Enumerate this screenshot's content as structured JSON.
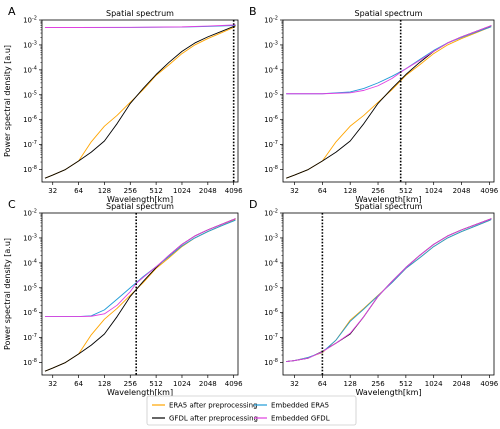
{
  "chart_data": [
    {
      "panel": "A",
      "type": "line",
      "title": "Spatial spectrum",
      "xlabel": "Wavelength[km]",
      "ylabel": "Power spectral density [a.u]",
      "x_scale": "log2",
      "y_scale": "log10",
      "xticks": [
        32,
        64,
        128,
        256,
        512,
        1024,
        2048,
        4096
      ],
      "yticks": [
        "10^-8",
        "10^-7",
        "10^-6",
        "10^-5",
        "10^-4",
        "10^-3",
        "10^-2"
      ],
      "cutoff_wavelength": 4096,
      "series": [
        {
          "name": "ERA5 after preprocessing",
          "color": "#ffa500",
          "x": [
            26,
            32,
            45,
            64,
            90,
            128,
            180,
            256,
            362,
            512,
            724,
            1024,
            1448,
            2048,
            2896,
            4096,
            4300
          ],
          "y": [
            4.5e-09,
            6e-09,
            1e-08,
            2.2e-08,
            1.3e-07,
            5.5e-07,
            1.5e-06,
            5e-06,
            1.6e-05,
            6e-05,
            0.00016,
            0.00045,
            0.001,
            0.0018,
            0.003,
            0.005,
            0.0055
          ]
        },
        {
          "name": "GFDL after preprocessing",
          "color": "#000000",
          "x": [
            26,
            32,
            45,
            64,
            90,
            128,
            180,
            256,
            362,
            512,
            724,
            1024,
            1448,
            2048,
            2896,
            4096,
            4300
          ],
          "y": [
            4.5e-09,
            6e-09,
            1e-08,
            2.2e-08,
            5e-08,
            1.4e-07,
            7e-07,
            4.5e-06,
            1.8e-05,
            6.5e-05,
            0.0002,
            0.00055,
            0.0012,
            0.0021,
            0.0034,
            0.0055,
            0.006
          ]
        },
        {
          "name": "Embedded ERA5",
          "color": "#1f9bd7",
          "x": [
            26,
            64,
            256,
            1024,
            2048,
            4096,
            4300
          ],
          "y": [
            0.005,
            0.005,
            0.00505,
            0.0052,
            0.0055,
            0.006,
            0.0062
          ]
        },
        {
          "name": "Embedded GFDL",
          "color": "#e040e0",
          "x": [
            26,
            64,
            256,
            1024,
            2048,
            4096,
            4300
          ],
          "y": [
            0.005,
            0.005,
            0.0051,
            0.0053,
            0.0057,
            0.0063,
            0.0065
          ]
        }
      ]
    },
    {
      "panel": "B",
      "type": "line",
      "title": "Spatial spectrum",
      "xlabel": "Wavelength[km]",
      "ylabel": "",
      "x_scale": "log2",
      "y_scale": "log10",
      "xticks": [
        32,
        64,
        128,
        256,
        512,
        1024,
        2048,
        4096
      ],
      "yticks": [
        "10^-8",
        "10^-7",
        "10^-6",
        "10^-5",
        "10^-4",
        "10^-3",
        "10^-2"
      ],
      "cutoff_wavelength": 450,
      "series": [
        {
          "name": "ERA5 after preprocessing",
          "color": "#ffa500",
          "x": [
            26,
            32,
            45,
            64,
            90,
            128,
            180,
            256,
            362,
            512,
            724,
            1024,
            1448,
            2048,
            2896,
            4096,
            4300
          ],
          "y": [
            4.5e-09,
            6e-09,
            1e-08,
            2.2e-08,
            1.3e-07,
            5.5e-07,
            1.5e-06,
            5e-06,
            1.6e-05,
            6e-05,
            0.00016,
            0.00045,
            0.001,
            0.0018,
            0.003,
            0.005,
            0.0055
          ]
        },
        {
          "name": "GFDL after preprocessing",
          "color": "#000000",
          "x": [
            26,
            32,
            45,
            64,
            90,
            128,
            180,
            256,
            362,
            512,
            724,
            1024,
            1448,
            2048,
            2896,
            4096,
            4300
          ],
          "y": [
            4.5e-09,
            6e-09,
            1e-08,
            2.2e-08,
            5e-08,
            1.4e-07,
            7e-07,
            4.5e-06,
            1.8e-05,
            6.5e-05,
            0.0002,
            0.00055,
            0.0012,
            0.0021,
            0.0034,
            0.0055,
            0.006
          ]
        },
        {
          "name": "Embedded ERA5",
          "color": "#1f9bd7",
          "x": [
            26,
            64,
            128,
            180,
            256,
            362,
            450,
            512,
            724,
            1024,
            1448,
            2048,
            2896,
            4096,
            4300
          ],
          "y": [
            1.1e-05,
            1.1e-05,
            1.3e-05,
            1.8e-05,
            3e-05,
            5.5e-05,
            8.5e-05,
            0.00011,
            0.00026,
            0.0006,
            0.0012,
            0.002,
            0.0032,
            0.005,
            0.0054
          ]
        },
        {
          "name": "Embedded GFDL",
          "color": "#e040e0",
          "x": [
            26,
            64,
            128,
            180,
            256,
            362,
            450,
            512,
            724,
            1024,
            1448,
            2048,
            2896,
            4096,
            4300
          ],
          "y": [
            1.1e-05,
            1.1e-05,
            1.2e-05,
            1.5e-05,
            2.3e-05,
            4.5e-05,
            8e-05,
            0.00011,
            0.00024,
            0.00055,
            0.0012,
            0.0021,
            0.0034,
            0.0056,
            0.006
          ]
        }
      ]
    },
    {
      "panel": "C",
      "type": "line",
      "title": "Spatial spectrum",
      "xlabel": "Wavelength[km]",
      "ylabel": "Power spectral density [a.u]",
      "x_scale": "log2",
      "y_scale": "log10",
      "xticks": [
        32,
        64,
        128,
        256,
        512,
        1024,
        2048,
        4096
      ],
      "yticks": [
        "10^-8",
        "10^-7",
        "10^-6",
        "10^-5",
        "10^-4",
        "10^-3",
        "10^-2"
      ],
      "cutoff_wavelength": 300,
      "series": [
        {
          "name": "ERA5 after preprocessing",
          "color": "#ffa500",
          "x": [
            26,
            32,
            45,
            64,
            90,
            128,
            180,
            256,
            362,
            512,
            724,
            1024,
            1448,
            2048,
            2896,
            4096,
            4300
          ],
          "y": [
            4.5e-09,
            6e-09,
            1e-08,
            2.2e-08,
            1.3e-07,
            5.5e-07,
            1.5e-06,
            5e-06,
            1.6e-05,
            6e-05,
            0.00016,
            0.00045,
            0.001,
            0.0018,
            0.003,
            0.005,
            0.0055
          ]
        },
        {
          "name": "GFDL after preprocessing",
          "color": "#000000",
          "x": [
            26,
            32,
            45,
            64,
            90,
            128,
            180,
            256,
            362,
            512,
            724,
            1024,
            1448,
            2048,
            2896,
            4096,
            4300
          ],
          "y": [
            4.5e-09,
            6e-09,
            1e-08,
            2.2e-08,
            5e-08,
            1.4e-07,
            7e-07,
            4.5e-06,
            1.8e-05,
            6.5e-05,
            0.0002,
            0.00055,
            0.0012,
            0.0021,
            0.0034,
            0.0055,
            0.006
          ]
        },
        {
          "name": "Embedded ERA5",
          "color": "#1f9bd7",
          "x": [
            26,
            64,
            90,
            128,
            180,
            256,
            300,
            362,
            512,
            724,
            1024,
            1448,
            2048,
            2896,
            4096,
            4300
          ],
          "y": [
            7e-07,
            7e-07,
            7.5e-07,
            1.3e-06,
            3.5e-06,
            1e-05,
            1.6e-05,
            2.8e-05,
            7e-05,
            0.00018,
            0.00048,
            0.001,
            0.0018,
            0.003,
            0.0048,
            0.0052
          ]
        },
        {
          "name": "Embedded GFDL",
          "color": "#e040e0",
          "x": [
            26,
            64,
            90,
            128,
            180,
            256,
            300,
            362,
            512,
            724,
            1024,
            1448,
            2048,
            2896,
            4096,
            4300
          ],
          "y": [
            7e-07,
            7e-07,
            7.2e-07,
            9e-07,
            2e-06,
            7e-06,
            1.5e-05,
            2.6e-05,
            7e-05,
            0.0002,
            0.00055,
            0.0012,
            0.0021,
            0.0034,
            0.0055,
            0.006
          ]
        }
      ]
    },
    {
      "panel": "D",
      "type": "line",
      "title": "Spatial spectrum",
      "xlabel": "Wavelength[km]",
      "ylabel": "",
      "x_scale": "log2",
      "y_scale": "log10",
      "xticks": [
        32,
        64,
        128,
        256,
        512,
        1024,
        2048,
        4096
      ],
      "yticks": [
        "10^-8",
        "10^-7",
        "10^-6",
        "10^-5",
        "10^-4",
        "10^-3",
        "10^-2"
      ],
      "cutoff_wavelength": 64,
      "series": [
        {
          "name": "ERA5 after preprocessing",
          "color": "#ffa500",
          "x": [
            26,
            32,
            45,
            64,
            90,
            128,
            180,
            256,
            362,
            512,
            724,
            1024,
            1448,
            2048,
            2896,
            4096,
            4300
          ],
          "y": [
            1.1e-08,
            1.2e-08,
            1.6e-08,
            2.5e-08,
            8e-08,
            5e-07,
            1.5e-06,
            5e-06,
            1.6e-05,
            6e-05,
            0.00016,
            0.00045,
            0.001,
            0.0018,
            0.003,
            0.005,
            0.0055
          ]
        },
        {
          "name": "GFDL after preprocessing",
          "color": "#000000",
          "x": [
            26,
            32,
            45,
            64,
            90,
            128,
            180,
            256,
            362,
            512,
            724,
            1024,
            1448,
            2048,
            2896,
            4096,
            4300
          ],
          "y": [
            1.1e-08,
            1.2e-08,
            1.5e-08,
            2.8e-08,
            6e-08,
            1.4e-07,
            7e-07,
            4.5e-06,
            1.8e-05,
            6.5e-05,
            0.0002,
            0.00055,
            0.0012,
            0.0021,
            0.0034,
            0.0055,
            0.006
          ]
        },
        {
          "name": "Embedded ERA5",
          "color": "#1f9bd7",
          "x": [
            26,
            32,
            45,
            64,
            90,
            128,
            180,
            256,
            362,
            512,
            724,
            1024,
            1448,
            2048,
            2896,
            4096,
            4300
          ],
          "y": [
            1.1e-08,
            1.2e-08,
            1.6e-08,
            2.6e-08,
            8e-08,
            4.5e-07,
            1.4e-06,
            4.8e-06,
            1.6e-05,
            6e-05,
            0.00016,
            0.00045,
            0.001,
            0.0018,
            0.003,
            0.005,
            0.0055
          ]
        },
        {
          "name": "Embedded GFDL",
          "color": "#e040e0",
          "x": [
            26,
            32,
            45,
            64,
            90,
            128,
            180,
            256,
            362,
            512,
            724,
            1024,
            1448,
            2048,
            2896,
            4096,
            4300
          ],
          "y": [
            1.1e-08,
            1.2e-08,
            1.5e-08,
            2.7e-08,
            6e-08,
            1.5e-07,
            7e-07,
            4.5e-06,
            1.8e-05,
            6.5e-05,
            0.0002,
            0.00055,
            0.0012,
            0.0021,
            0.0034,
            0.0055,
            0.006
          ]
        }
      ]
    }
  ],
  "legend": {
    "placement": "bottom-center",
    "entries": [
      {
        "label": "ERA5 after preprocessing",
        "color": "#ffa500"
      },
      {
        "label": "Embedded ERA5",
        "color": "#1f9bd7"
      },
      {
        "label": "GFDL after preprocessing",
        "color": "#000000"
      },
      {
        "label": "Embedded GFDL",
        "color": "#e040e0"
      }
    ]
  }
}
